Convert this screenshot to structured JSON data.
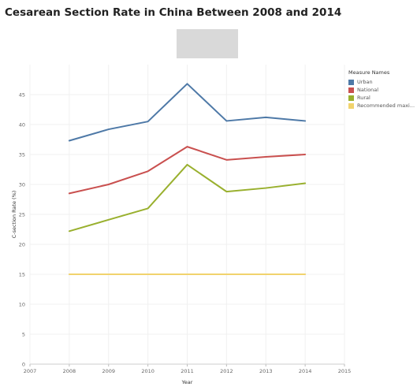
{
  "chart_data": {
    "type": "line",
    "title": "Cesarean Section Rate in China Between 2008 and 2014",
    "xlabel": "Year",
    "ylabel": "C-section Rate (%)",
    "x_ticks": [
      2007,
      2008,
      2009,
      2010,
      2011,
      2012,
      2013,
      2014,
      2015
    ],
    "y_ticks": [
      0,
      5,
      10,
      15,
      20,
      25,
      30,
      35,
      40,
      45
    ],
    "xlim": [
      2007,
      2015
    ],
    "ylim": [
      0,
      50
    ],
    "grid": true,
    "legend_title": "Measure Names",
    "legend_position": "top-right",
    "x": [
      2008,
      2009,
      2010,
      2011,
      2012,
      2013,
      2014
    ],
    "series": [
      {
        "name": "Urban",
        "color": "#4e79a7",
        "values": [
          37.3,
          39.2,
          40.5,
          46.8,
          40.6,
          41.2,
          40.6
        ]
      },
      {
        "name": "National",
        "color": "#c9504f",
        "values": [
          28.5,
          30.0,
          32.2,
          36.3,
          34.1,
          34.6,
          35.0
        ]
      },
      {
        "name": "Rural",
        "color": "#99b02e",
        "values": [
          22.2,
          24.1,
          26.0,
          33.3,
          28.8,
          29.4,
          30.2
        ]
      },
      {
        "name": "Recommended maxi...",
        "color": "#f1d36d",
        "values": [
          15,
          15,
          15,
          15,
          15,
          15,
          15
        ]
      }
    ]
  }
}
